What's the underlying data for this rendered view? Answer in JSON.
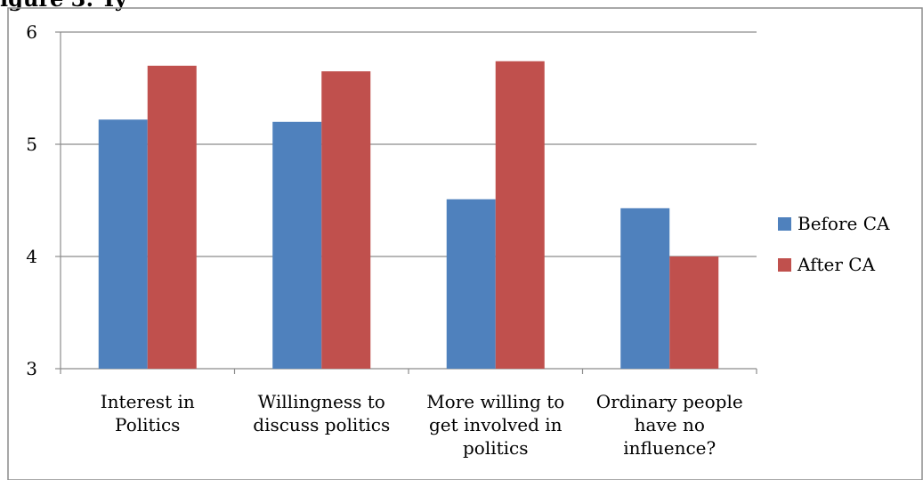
{
  "heading_fragment": "igure 3: Ty",
  "chart_data": {
    "type": "bar",
    "categories": [
      [
        "Interest in",
        "Politics"
      ],
      [
        "Willingness to",
        "discuss politics"
      ],
      [
        "More willing to",
        "get involved in",
        "politics"
      ],
      [
        "Ordinary people",
        "have no",
        "influence?"
      ]
    ],
    "series": [
      {
        "name": "Before CA",
        "color": "#4F81BD",
        "values": [
          5.22,
          5.2,
          4.51,
          4.43
        ]
      },
      {
        "name": "After CA",
        "color": "#C0504D",
        "values": [
          5.7,
          5.65,
          5.74,
          4.0
        ]
      }
    ],
    "ylim": [
      3,
      6
    ],
    "yticks": [
      "3",
      "4",
      "5",
      "6"
    ],
    "grid": true,
    "legend": "right"
  }
}
